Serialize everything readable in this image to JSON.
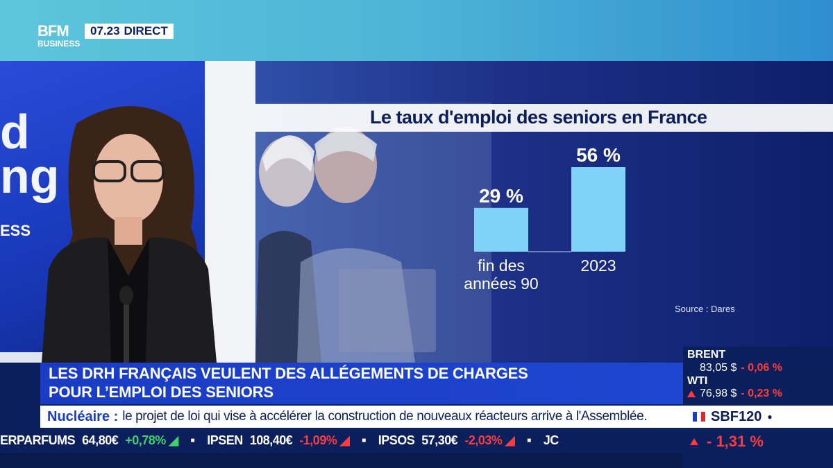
{
  "channel": {
    "logo_top": "BFM",
    "logo_bottom": "BUSINESS",
    "time": "07.23",
    "live": "DIRECT"
  },
  "studio": {
    "screen_text": "d\nng",
    "screen_small": "ESS"
  },
  "chart_data": {
    "type": "bar",
    "title": "Le taux d'emploi des seniors en France",
    "categories": [
      "fin des années 90",
      "2023"
    ],
    "category_lines": [
      [
        "fin des",
        "années 90"
      ],
      [
        "2023"
      ]
    ],
    "values": [
      29,
      56
    ],
    "value_labels": [
      "29 %",
      "56 %"
    ],
    "unit": "%",
    "source": "Source : Dares",
    "bar_color": "#7fd3f7"
  },
  "headline": {
    "line1": "LES DRH FRANÇAIS VEULENT DES ALLÉGEMENTS DE CHARGES",
    "line2": "POUR L’EMPLOI DES SENIORS"
  },
  "flash": {
    "tag": "Nucléaire :",
    "text": "le projet de loi qui vise à accélérer la construction de nouveaux réacteurs arrive à l'Assemblée."
  },
  "ticker": [
    {
      "name": "ERPARFUMS",
      "value": "64,80€",
      "change": "+0,78%",
      "dir": "up"
    },
    {
      "name": "IPSEN",
      "value": "108,40€",
      "change": "-1,09%",
      "dir": "down"
    },
    {
      "name": "IPSOS",
      "value": "57,30€",
      "change": "-2,03%",
      "dir": "down"
    },
    {
      "name": "JC",
      "value": "",
      "change": "",
      "dir": ""
    }
  ],
  "markets": {
    "brent": {
      "label": "BRENT",
      "value": "83,05 $",
      "change": "- 0,06 %"
    },
    "wti": {
      "label": "WTI",
      "value": "76,98 $",
      "change": "- 0,23 %"
    },
    "index": {
      "label": "SBF120",
      "change": "- 1,31 %"
    }
  },
  "colors": {
    "accent": "#1a3cc4",
    "navy": "#0b1f5c",
    "up": "#3ed06b",
    "down": "#ff3b3b"
  }
}
